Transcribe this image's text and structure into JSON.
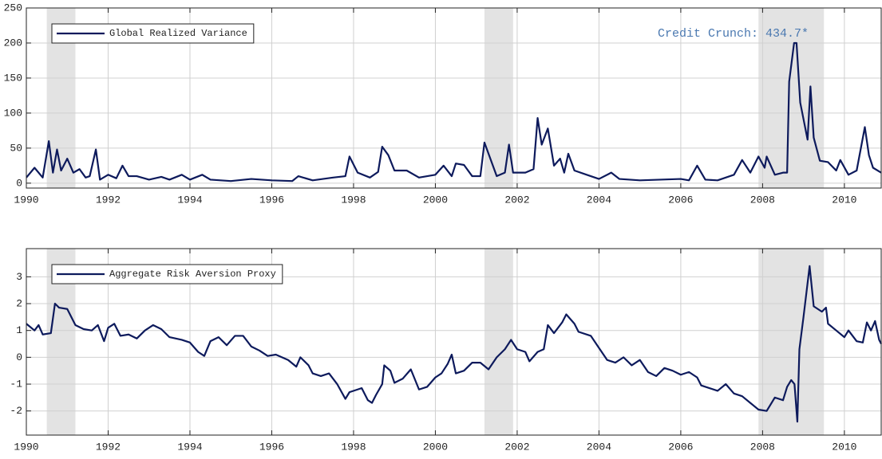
{
  "chart_data": [
    {
      "type": "line",
      "legend": "upper left",
      "grid": true,
      "shade_color": "#e3e3e3",
      "annotation": "Credit Crunch: 434.7*",
      "annotation_color": "#4a78b0",
      "xlim": [
        1990,
        2010.9
      ],
      "ylim": [
        -7,
        250
      ],
      "xticks": [
        1990,
        1992,
        1994,
        1996,
        1998,
        2000,
        2002,
        2004,
        2006,
        2008,
        2010
      ],
      "yticks": [
        0,
        50,
        100,
        150,
        200,
        250
      ],
      "shaded_regions": [
        [
          1990.5,
          1991.2
        ],
        [
          2001.2,
          2001.9
        ],
        [
          2007.9,
          2009.5
        ]
      ],
      "x": [
        1990.0,
        1990.2,
        1990.4,
        1990.55,
        1990.65,
        1990.75,
        1990.85,
        1991.0,
        1991.15,
        1991.3,
        1991.45,
        1991.55,
        1991.7,
        1991.8,
        1992.0,
        1992.2,
        1992.35,
        1992.5,
        1992.7,
        1993.0,
        1993.3,
        1993.5,
        1993.8,
        1994.0,
        1994.3,
        1994.5,
        1995.0,
        1995.5,
        1996.0,
        1996.5,
        1996.65,
        1997.0,
        1997.5,
        1997.8,
        1997.9,
        1998.1,
        1998.4,
        1998.6,
        1998.7,
        1998.85,
        1999.0,
        1999.3,
        1999.6,
        2000.0,
        2000.2,
        2000.4,
        2000.5,
        2000.7,
        2000.9,
        2001.1,
        2001.2,
        2001.5,
        2001.7,
        2001.8,
        2001.9,
        2002.2,
        2002.4,
        2002.5,
        2002.6,
        2002.75,
        2002.9,
        2003.05,
        2003.15,
        2003.25,
        2003.4,
        2003.7,
        2004.0,
        2004.3,
        2004.5,
        2005.0,
        2005.5,
        2006.0,
        2006.2,
        2006.4,
        2006.6,
        2006.9,
        2007.3,
        2007.5,
        2007.7,
        2007.9,
        2008.05,
        2008.1,
        2008.3,
        2008.5,
        2008.6,
        2008.65,
        2008.77,
        2008.83,
        2008.92,
        2009.1,
        2009.17,
        2009.25,
        2009.4,
        2009.6,
        2009.8,
        2009.9,
        2010.1,
        2010.3,
        2010.5,
        2010.6,
        2010.7,
        2010.9
      ],
      "series": [
        {
          "name": "Global Realized Variance",
          "color": "#0d1a5c",
          "values": [
            8,
            22,
            8,
            60,
            15,
            48,
            18,
            35,
            15,
            20,
            8,
            10,
            48,
            5,
            12,
            7,
            25,
            10,
            10,
            5,
            9,
            5,
            12,
            5,
            12,
            5,
            3,
            6,
            4,
            3,
            10,
            4,
            8,
            10,
            38,
            15,
            8,
            16,
            52,
            40,
            18,
            18,
            8,
            12,
            25,
            10,
            28,
            26,
            10,
            10,
            58,
            10,
            15,
            55,
            15,
            15,
            20,
            93,
            55,
            78,
            25,
            35,
            15,
            42,
            18,
            12,
            6,
            15,
            6,
            4,
            5,
            6,
            4,
            25,
            5,
            4,
            12,
            33,
            15,
            38,
            22,
            38,
            12,
            15,
            15,
            145,
            200,
            200,
            115,
            62,
            138,
            65,
            32,
            30,
            18,
            33,
            12,
            18,
            80,
            40,
            22,
            15
          ]
        }
      ]
    },
    {
      "type": "line",
      "legend": "upper left",
      "grid": true,
      "shade_color": "#e3e3e3",
      "xlim": [
        1990,
        2010.9
      ],
      "ylim": [
        -2.9,
        4.05
      ],
      "xticks": [
        1990,
        1992,
        1994,
        1996,
        1998,
        2000,
        2002,
        2004,
        2006,
        2008,
        2010
      ],
      "yticks": [
        -2,
        -1,
        0,
        1,
        2,
        3
      ],
      "shaded_regions": [
        [
          1990.5,
          1991.2
        ],
        [
          2001.2,
          2001.9
        ],
        [
          2007.9,
          2009.5
        ]
      ],
      "x": [
        1990.0,
        1990.2,
        1990.3,
        1990.4,
        1990.6,
        1990.7,
        1990.8,
        1991.0,
        1991.2,
        1991.4,
        1991.6,
        1991.75,
        1991.9,
        1992.0,
        1992.15,
        1992.3,
        1992.5,
        1992.7,
        1992.9,
        1993.1,
        1993.3,
        1993.5,
        1993.8,
        1994.0,
        1994.2,
        1994.35,
        1994.5,
        1994.7,
        1994.9,
        1995.1,
        1995.3,
        1995.5,
        1995.7,
        1995.9,
        1996.1,
        1996.4,
        1996.6,
        1996.7,
        1996.9,
        1997.0,
        1997.2,
        1997.4,
        1997.6,
        1997.8,
        1997.9,
        1998.1,
        1998.2,
        1998.35,
        1998.45,
        1998.55,
        1998.7,
        1998.75,
        1998.9,
        1999.0,
        1999.2,
        1999.4,
        1999.6,
        1999.8,
        2000.0,
        2000.15,
        2000.3,
        2000.4,
        2000.5,
        2000.7,
        2000.9,
        2001.1,
        2001.3,
        2001.5,
        2001.7,
        2001.85,
        2002.0,
        2002.2,
        2002.3,
        2002.5,
        2002.65,
        2002.75,
        2002.9,
        2003.1,
        2003.2,
        2003.4,
        2003.5,
        2003.8,
        2004.0,
        2004.2,
        2004.4,
        2004.6,
        2004.8,
        2005.0,
        2005.2,
        2005.4,
        2005.6,
        2005.8,
        2006.0,
        2006.2,
        2006.4,
        2006.5,
        2006.7,
        2006.9,
        2007.1,
        2007.3,
        2007.5,
        2007.7,
        2007.9,
        2008.1,
        2008.3,
        2008.5,
        2008.6,
        2008.7,
        2008.78,
        2008.85,
        2008.9,
        2009.0,
        2009.15,
        2009.25,
        2009.45,
        2009.55,
        2009.6,
        2009.8,
        2010.0,
        2010.1,
        2010.3,
        2010.45,
        2010.55,
        2010.65,
        2010.75,
        2010.85,
        2010.9
      ],
      "series": [
        {
          "name": "Aggregate Risk Aversion Proxy",
          "color": "#0d1a5c",
          "values": [
            1.25,
            1.0,
            1.2,
            0.85,
            0.9,
            2.0,
            1.85,
            1.8,
            1.2,
            1.05,
            1.0,
            1.2,
            0.6,
            1.1,
            1.25,
            0.8,
            0.85,
            0.7,
            1.0,
            1.2,
            1.05,
            0.75,
            0.65,
            0.55,
            0.2,
            0.05,
            0.6,
            0.75,
            0.45,
            0.8,
            0.8,
            0.4,
            0.25,
            0.05,
            0.1,
            -0.1,
            -0.35,
            0.0,
            -0.3,
            -0.6,
            -0.7,
            -0.6,
            -1.0,
            -1.55,
            -1.3,
            -1.2,
            -1.15,
            -1.6,
            -1.7,
            -1.4,
            -1.0,
            -0.3,
            -0.5,
            -0.95,
            -0.8,
            -0.45,
            -1.2,
            -1.1,
            -0.75,
            -0.6,
            -0.25,
            0.1,
            -0.6,
            -0.5,
            -0.2,
            -0.2,
            -0.45,
            0.0,
            0.3,
            0.65,
            0.3,
            0.2,
            -0.15,
            0.2,
            0.3,
            1.2,
            0.9,
            1.3,
            1.6,
            1.25,
            0.95,
            0.8,
            0.35,
            -0.1,
            -0.2,
            0.0,
            -0.3,
            -0.1,
            -0.55,
            -0.7,
            -0.4,
            -0.5,
            -0.65,
            -0.55,
            -0.75,
            -1.05,
            -1.15,
            -1.25,
            -1.0,
            -1.35,
            -1.45,
            -1.7,
            -1.95,
            -2.0,
            -1.5,
            -1.6,
            -1.1,
            -0.85,
            -1.0,
            -2.4,
            0.3,
            1.5,
            3.4,
            1.9,
            1.7,
            1.85,
            1.25,
            1.0,
            0.75,
            1.0,
            0.6,
            0.55,
            1.3,
            1.0,
            1.35,
            0.65,
            0.5
          ]
        }
      ]
    }
  ]
}
